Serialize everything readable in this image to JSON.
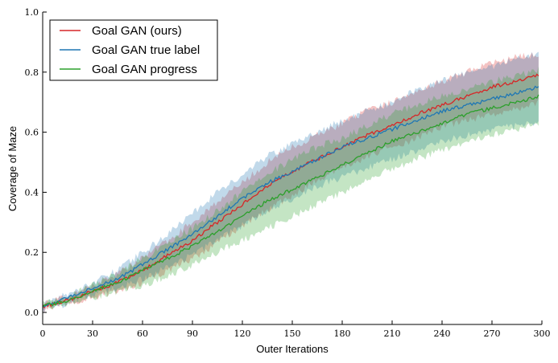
{
  "chart_data": {
    "type": "line",
    "xlabel": "Outer Iterations",
    "ylabel": "Coverage of Maze",
    "xlim": [
      0,
      300
    ],
    "ylim": [
      -0.04,
      1.0
    ],
    "xticks": [
      "0",
      "30",
      "60",
      "90",
      "120",
      "150",
      "180",
      "210",
      "240",
      "270",
      "300"
    ],
    "yticks": [
      "0.0",
      "0.2",
      "0.4",
      "0.6",
      "0.8",
      "1.0"
    ],
    "grid": false,
    "legend_position": "top-left",
    "x": [
      0,
      15,
      30,
      45,
      60,
      75,
      90,
      105,
      120,
      135,
      150,
      165,
      180,
      195,
      210,
      225,
      240,
      255,
      270,
      285,
      298
    ],
    "series": [
      {
        "name": "Goal GAN (ours)",
        "color": "#d62728",
        "values": [
          0.02,
          0.04,
          0.07,
          0.1,
          0.14,
          0.19,
          0.24,
          0.3,
          0.36,
          0.42,
          0.47,
          0.51,
          0.55,
          0.59,
          0.62,
          0.66,
          0.69,
          0.72,
          0.75,
          0.77,
          0.79
        ],
        "lower": [
          0.01,
          0.03,
          0.05,
          0.07,
          0.1,
          0.14,
          0.18,
          0.23,
          0.29,
          0.34,
          0.39,
          0.44,
          0.48,
          0.52,
          0.55,
          0.58,
          0.62,
          0.64,
          0.66,
          0.68,
          0.7
        ],
        "upper": [
          0.03,
          0.05,
          0.09,
          0.13,
          0.18,
          0.24,
          0.3,
          0.37,
          0.43,
          0.5,
          0.55,
          0.59,
          0.63,
          0.67,
          0.7,
          0.74,
          0.77,
          0.8,
          0.83,
          0.85,
          0.86
        ]
      },
      {
        "name": "Goal GAN true label",
        "color": "#1f77b4",
        "values": [
          0.02,
          0.05,
          0.08,
          0.11,
          0.16,
          0.21,
          0.26,
          0.32,
          0.38,
          0.43,
          0.47,
          0.51,
          0.55,
          0.58,
          0.61,
          0.64,
          0.67,
          0.69,
          0.71,
          0.73,
          0.75
        ],
        "lower": [
          0.01,
          0.03,
          0.06,
          0.08,
          0.11,
          0.15,
          0.19,
          0.24,
          0.29,
          0.34,
          0.38,
          0.42,
          0.45,
          0.48,
          0.51,
          0.54,
          0.57,
          0.59,
          0.61,
          0.62,
          0.63
        ],
        "upper": [
          0.03,
          0.06,
          0.1,
          0.14,
          0.2,
          0.26,
          0.33,
          0.4,
          0.46,
          0.52,
          0.56,
          0.6,
          0.64,
          0.67,
          0.7,
          0.74,
          0.77,
          0.8,
          0.82,
          0.85,
          0.86
        ]
      },
      {
        "name": "Goal GAN progress",
        "color": "#2ca02c",
        "values": [
          0.02,
          0.04,
          0.07,
          0.1,
          0.14,
          0.18,
          0.22,
          0.27,
          0.32,
          0.37,
          0.41,
          0.45,
          0.49,
          0.53,
          0.57,
          0.6,
          0.63,
          0.66,
          0.68,
          0.7,
          0.72
        ],
        "lower": [
          0.01,
          0.03,
          0.05,
          0.07,
          0.09,
          0.12,
          0.16,
          0.2,
          0.24,
          0.28,
          0.32,
          0.36,
          0.4,
          0.44,
          0.48,
          0.51,
          0.54,
          0.57,
          0.59,
          0.61,
          0.63
        ],
        "upper": [
          0.03,
          0.05,
          0.09,
          0.13,
          0.18,
          0.23,
          0.28,
          0.34,
          0.4,
          0.46,
          0.51,
          0.55,
          0.58,
          0.62,
          0.66,
          0.69,
          0.72,
          0.74,
          0.77,
          0.79,
          0.81
        ]
      }
    ]
  }
}
